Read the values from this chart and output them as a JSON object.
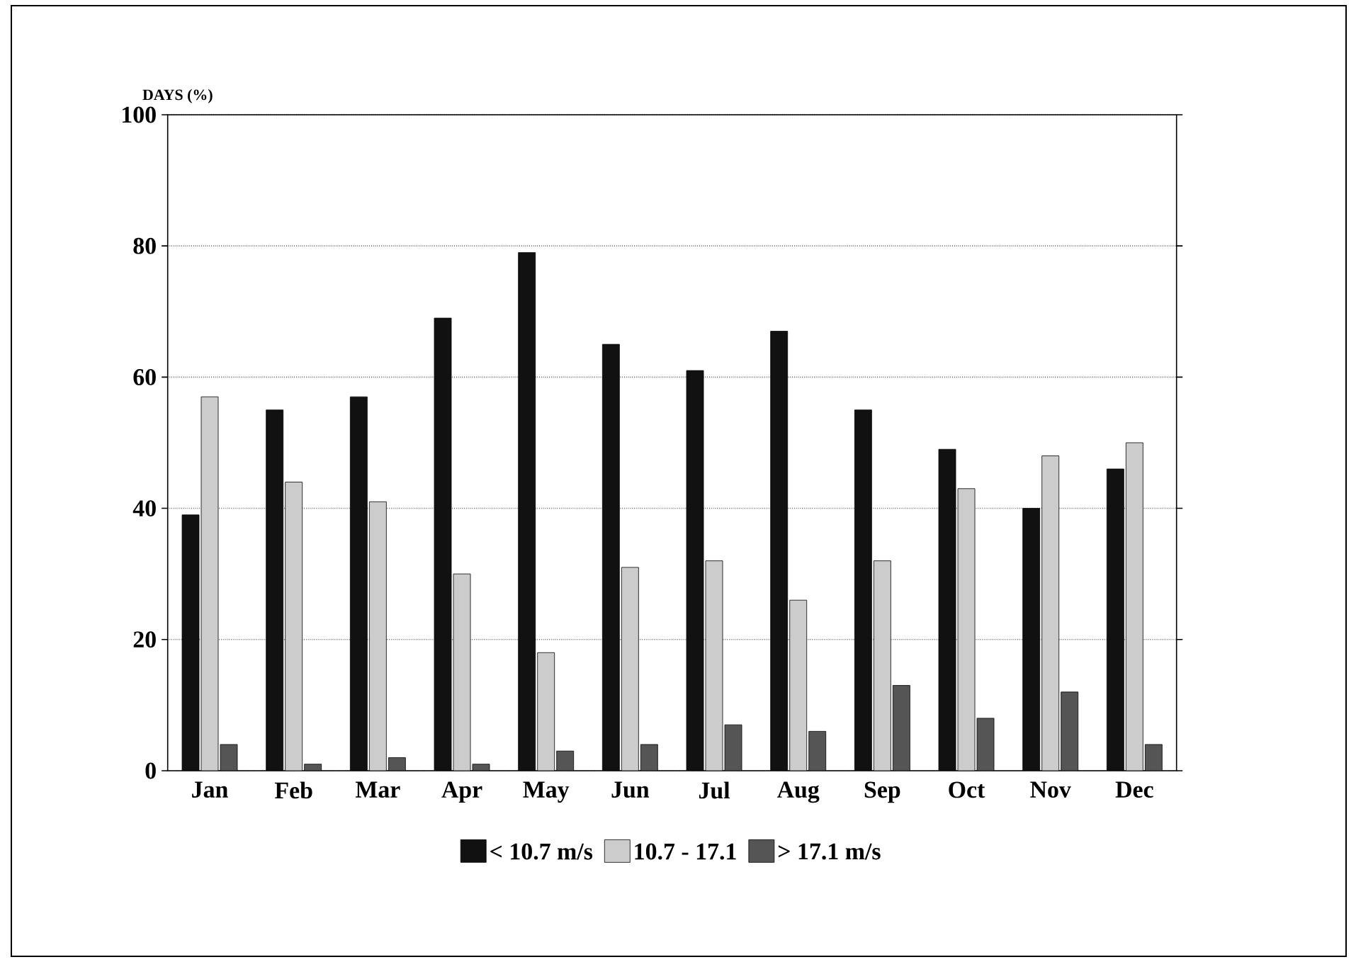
{
  "chart_data": {
    "type": "bar",
    "ylabel": "DAYS (%)",
    "categories": [
      "Jan",
      "Feb",
      "Mar",
      "Apr",
      "May",
      "Jun",
      "Jul",
      "Aug",
      "Sep",
      "Oct",
      "Nov",
      "Dec"
    ],
    "series": [
      {
        "name": "< 10.7 m/s",
        "color": "#111111",
        "values": [
          39,
          55,
          57,
          69,
          79,
          65,
          61,
          67,
          55,
          49,
          40,
          46
        ]
      },
      {
        "name": "10.7 - 17.1",
        "color": "#cccccc",
        "values": [
          57,
          44,
          41,
          30,
          18,
          31,
          32,
          26,
          32,
          43,
          48,
          50
        ]
      },
      {
        "name": "> 17.1 m/s",
        "color": "#555555",
        "values": [
          4,
          1,
          2,
          1,
          3,
          4,
          7,
          6,
          13,
          8,
          12,
          4
        ]
      }
    ],
    "ylim": [
      0,
      100
    ],
    "yticks": [
      0,
      20,
      40,
      60,
      80,
      100
    ],
    "grid": "y",
    "legend": "bottom"
  }
}
